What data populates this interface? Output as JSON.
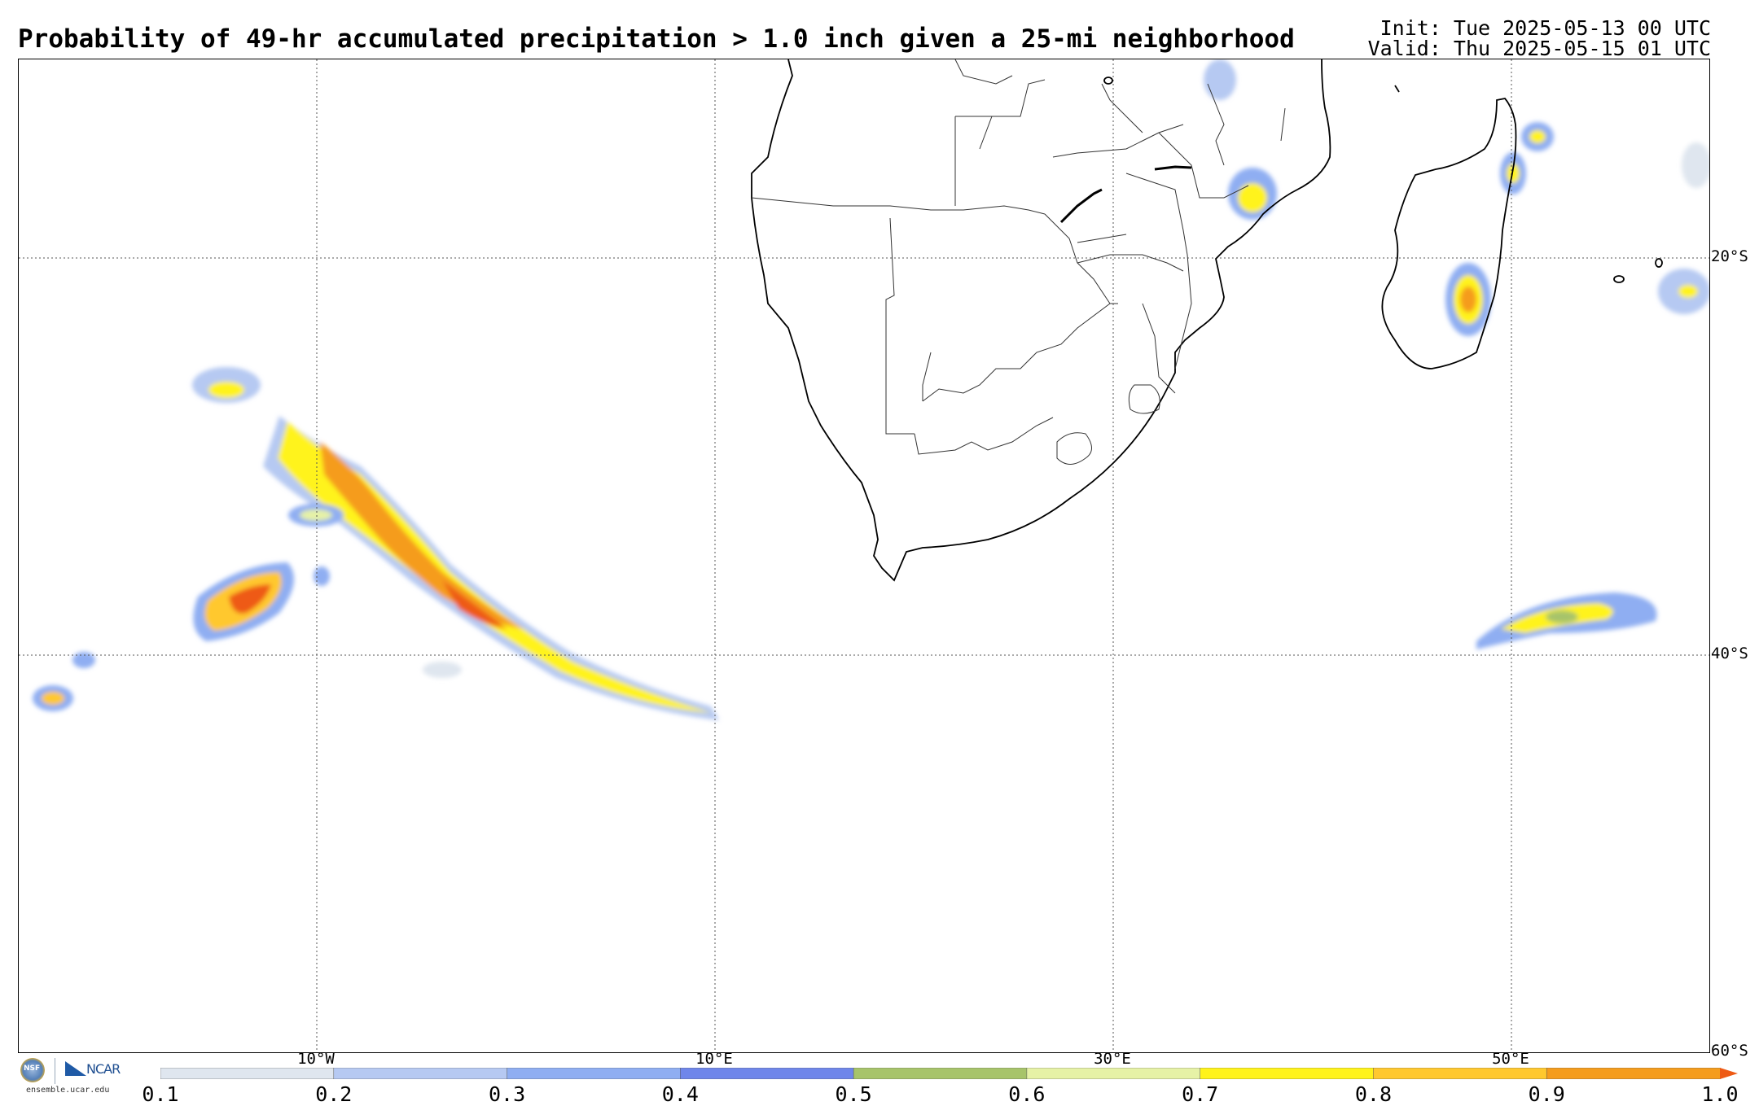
{
  "title": "Probability of 49-hr accumulated precipitation > 1.0 inch given a 25-mi neighborhood",
  "init": "Init: Tue 2025-05-13 00 UTC",
  "valid": "Valid: Thu 2025-05-15 01 UTC",
  "axes": {
    "lat_labels": [
      "20°S",
      "40°S",
      "60°S"
    ],
    "lon_labels": [
      "10°W",
      "10°E",
      "30°E",
      "50°E"
    ]
  },
  "colorbar": {
    "ticks": [
      "0.1",
      "0.2",
      "0.3",
      "0.4",
      "0.5",
      "0.6",
      "0.7",
      "0.8",
      "0.9",
      "1.0"
    ],
    "colors": [
      "#dfe6ef",
      "#b6c9f2",
      "#8faef2",
      "#6f86ea",
      "#a7c46a",
      "#e6f2a6",
      "#fff31a",
      "#ffc82e",
      "#f59c1c"
    ],
    "over_color": "#ee5a14"
  },
  "logos": {
    "nsf": "NSF",
    "ncar": "NCAR",
    "url": "ensemble.ucar.edu"
  }
}
